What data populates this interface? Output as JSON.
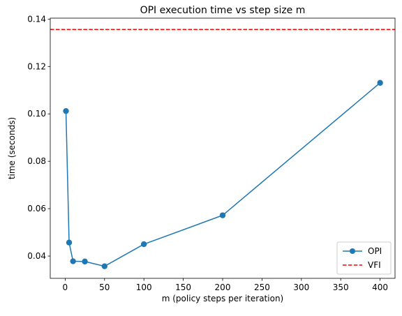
{
  "chart_data": {
    "type": "line",
    "title": "OPI execution time vs step size m",
    "xlabel": "m (policy steps per iteration)",
    "ylabel": "time (seconds)",
    "xlim": [
      -18.95,
      418.95
    ],
    "ylim": [
      0.0306,
      0.1404
    ],
    "xticks": [
      0,
      50,
      100,
      150,
      200,
      250,
      300,
      350,
      400
    ],
    "yticks": [
      0.04,
      0.06,
      0.08,
      0.1,
      0.12,
      0.14
    ],
    "ytick_labels": [
      "0.04",
      "0.06",
      "0.08",
      "0.10",
      "0.12",
      "0.14"
    ],
    "grid": false,
    "legend_position": "lower right",
    "series": [
      {
        "name": "OPI",
        "style": "line-with-markers",
        "color": "#1f77b4",
        "x": [
          1,
          5,
          10,
          25,
          50,
          100,
          200,
          400
        ],
        "y": [
          0.1012,
          0.0457,
          0.0378,
          0.0377,
          0.0357,
          0.045,
          0.0572,
          0.1131
        ]
      },
      {
        "name": "VFI",
        "style": "dashed-horizontal",
        "color": "#ff0000",
        "y_value": 0.1356
      }
    ]
  }
}
